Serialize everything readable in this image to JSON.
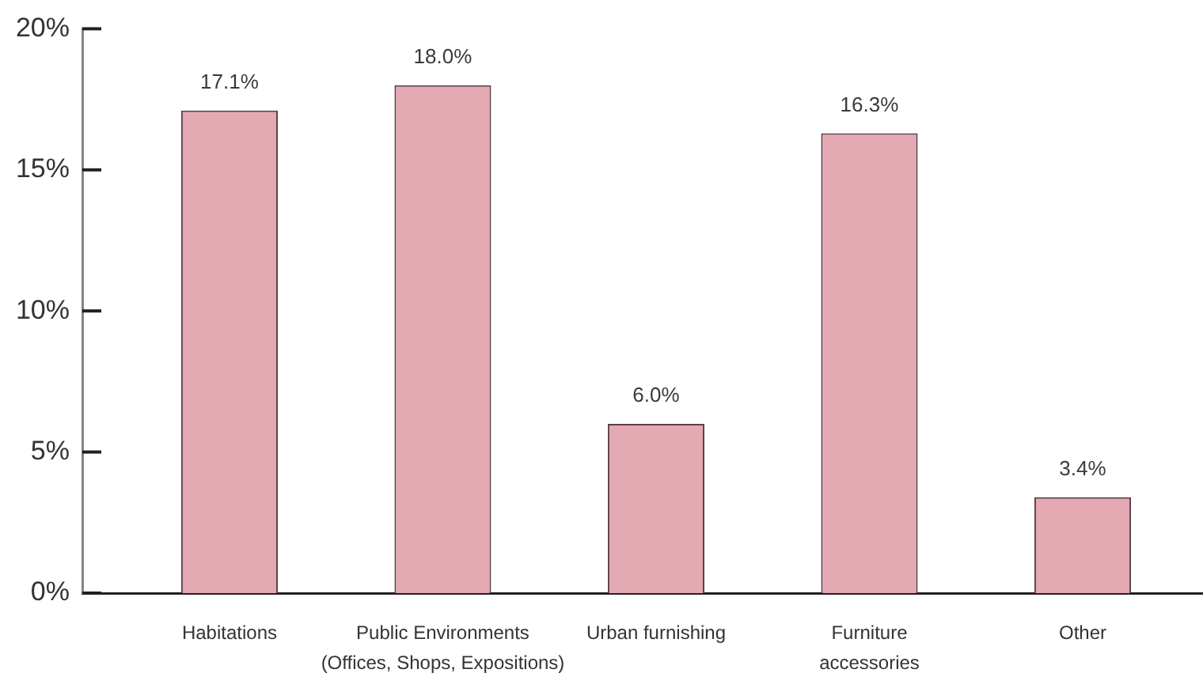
{
  "chart_data": {
    "type": "bar",
    "categories": [
      "Habitations",
      "Public Environments\n(Offices, Shops, Expositions)",
      "Urban furnishing",
      "Furniture\naccessories",
      "Other"
    ],
    "values": [
      17.1,
      18.0,
      6.0,
      16.3,
      3.4
    ],
    "value_labels": [
      "17.1%",
      "18.0%",
      "6.0%",
      "16.3%",
      "3.4%"
    ],
    "color": "#e4a9b2",
    "ylim": [
      0,
      20
    ],
    "yticks": [
      {
        "value": 0,
        "label": "0%"
      },
      {
        "value": 5,
        "label": "5%"
      },
      {
        "value": 10,
        "label": "10%"
      },
      {
        "value": 15,
        "label": "15%"
      },
      {
        "value": 20,
        "label": "20%"
      }
    ]
  }
}
